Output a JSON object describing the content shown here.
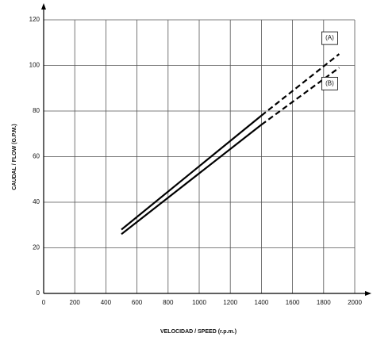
{
  "chart_data": {
    "type": "line",
    "xlabel": "VELOCIDAD / SPEED  (r.p.m.)",
    "ylabel": "CAUDAL / FLOW (G.P.M.)",
    "x": [
      500,
      1400,
      1900
    ],
    "series": [
      {
        "name": "(A)",
        "color": "#000000",
        "values": [
          28,
          78,
          105
        ],
        "segment_styles": [
          "solid",
          "dashed"
        ]
      },
      {
        "name": "(B)",
        "color": "#000000",
        "values": [
          26,
          74,
          99
        ],
        "segment_styles": [
          "solid",
          "dashed"
        ]
      }
    ],
    "xlim": [
      0,
      2000
    ],
    "xticks": [
      0,
      200,
      400,
      600,
      800,
      1000,
      1200,
      1400,
      1600,
      1800,
      2000
    ],
    "ylim": [
      0,
      120
    ],
    "yticks": [
      0,
      20,
      40,
      60,
      80,
      100,
      120
    ],
    "grid": true
  }
}
